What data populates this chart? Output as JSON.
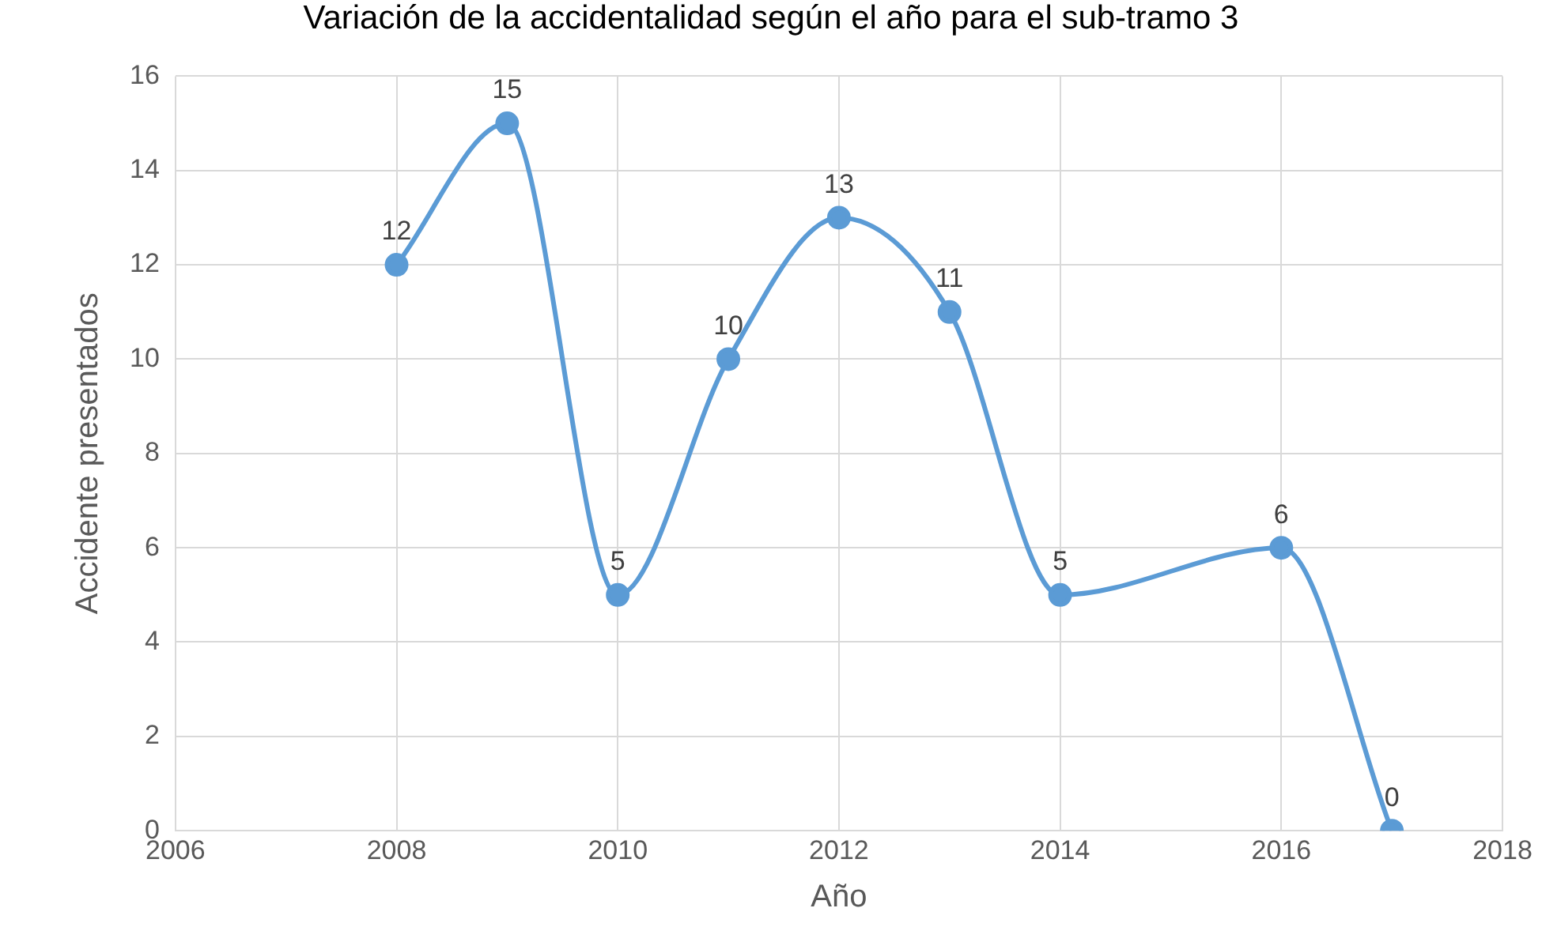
{
  "chart_data": {
    "type": "line",
    "title": "Variación de la accidentalidad según el año para el sub-tramo 3",
    "xlabel": "Año",
    "ylabel": "Accidente presentados",
    "x": [
      2008,
      2009,
      2010,
      2011,
      2012,
      2013,
      2014,
      2016,
      2017
    ],
    "series": [
      {
        "color": "#5b9bd5",
        "values": [
          12,
          15,
          5,
          10,
          13,
          11,
          5,
          6,
          0
        ]
      }
    ],
    "xlim": [
      2006,
      2018
    ],
    "xticks": [
      2006,
      2008,
      2010,
      2012,
      2014,
      2016,
      2018
    ],
    "ylim": [
      0,
      16
    ],
    "yticks": [
      0,
      2,
      4,
      6,
      8,
      10,
      12,
      14,
      16
    ],
    "grid": true,
    "marker": "circle",
    "line_style": "solid",
    "data_labels": true
  }
}
